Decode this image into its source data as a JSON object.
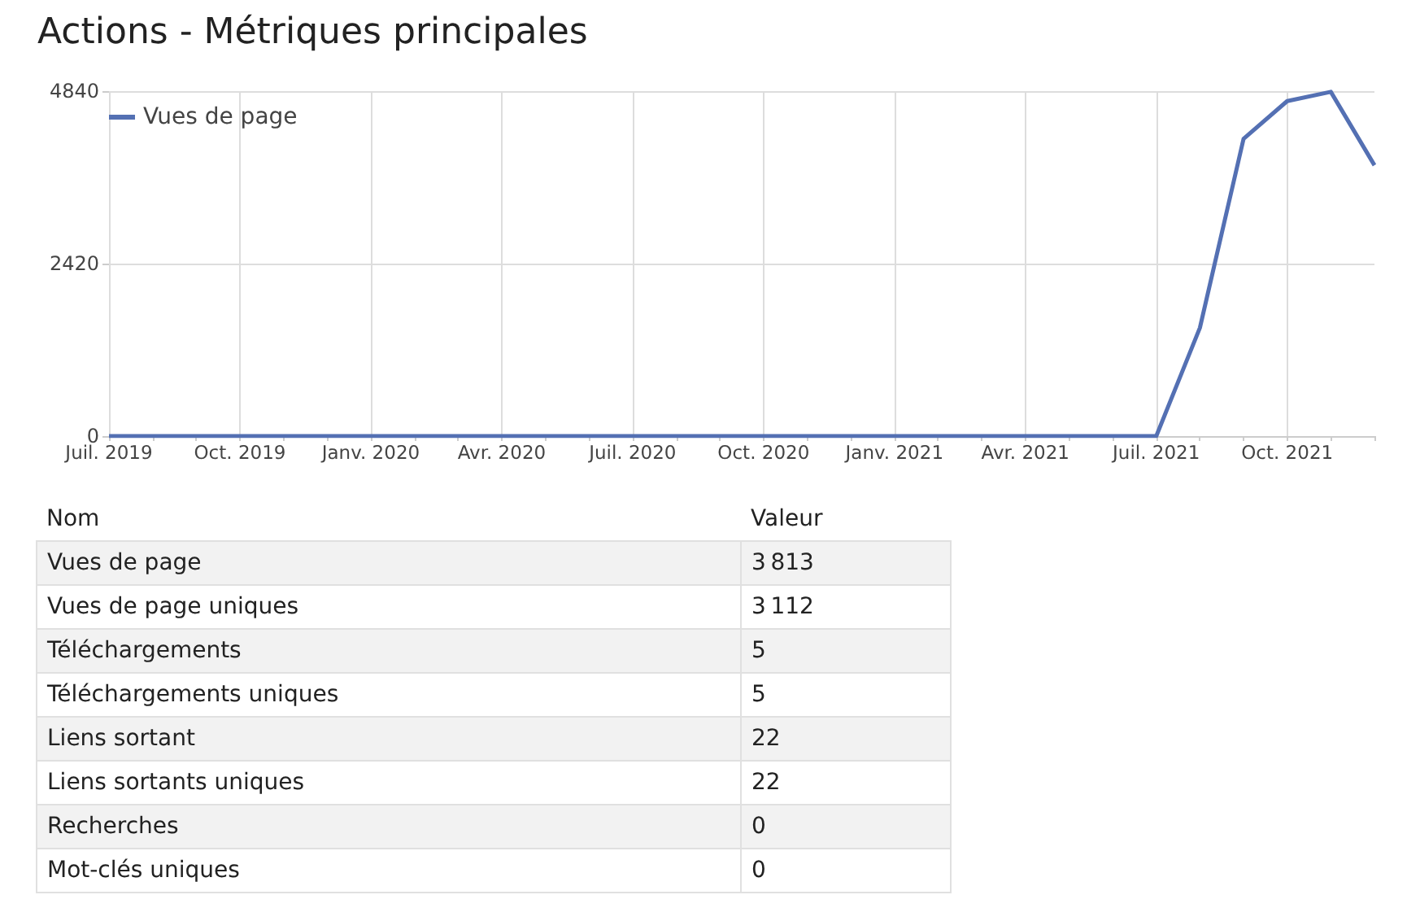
{
  "chart_data": [
    {
      "type": "line",
      "title": "Actions - Métriques principales",
      "categories": [
        "Juil. 2019",
        null,
        null,
        "Oct. 2019",
        null,
        null,
        "Janv. 2020",
        null,
        null,
        "Avr. 2020",
        null,
        null,
        "Juil. 2020",
        null,
        null,
        "Oct. 2020",
        null,
        null,
        "Janv. 2021",
        null,
        null,
        "Avr. 2021",
        null,
        null,
        "Juil. 2021",
        null,
        null,
        "Oct. 2021",
        null,
        null
      ],
      "series": [
        {
          "name": "Vues de page",
          "color": "#5470b3",
          "values": [
            0,
            0,
            0,
            0,
            0,
            0,
            0,
            0,
            0,
            0,
            0,
            0,
            0,
            0,
            0,
            0,
            0,
            0,
            0,
            0,
            0,
            0,
            0,
            0,
            0,
            1520,
            4170,
            4700,
            4830,
            3800
          ]
        }
      ],
      "ylim": [
        0,
        4840
      ],
      "yticks": [
        0,
        2420,
        4840
      ],
      "grid": true,
      "legend": "top left",
      "marker": "none"
    },
    {
      "type": "other",
      "xlabel": "Nom",
      "ylabel": "Valeur",
      "categories": [
        "Vues de page",
        "Vues de page uniques",
        "Téléchargements",
        "Téléchargements uniques",
        "Liens sortant",
        "Liens sortants uniques",
        "Recherches",
        "Mot-clés uniques"
      ],
      "values": [
        3813,
        3112,
        5,
        5,
        22,
        22,
        0,
        0
      ],
      "data_labels": true
    }
  ]
}
